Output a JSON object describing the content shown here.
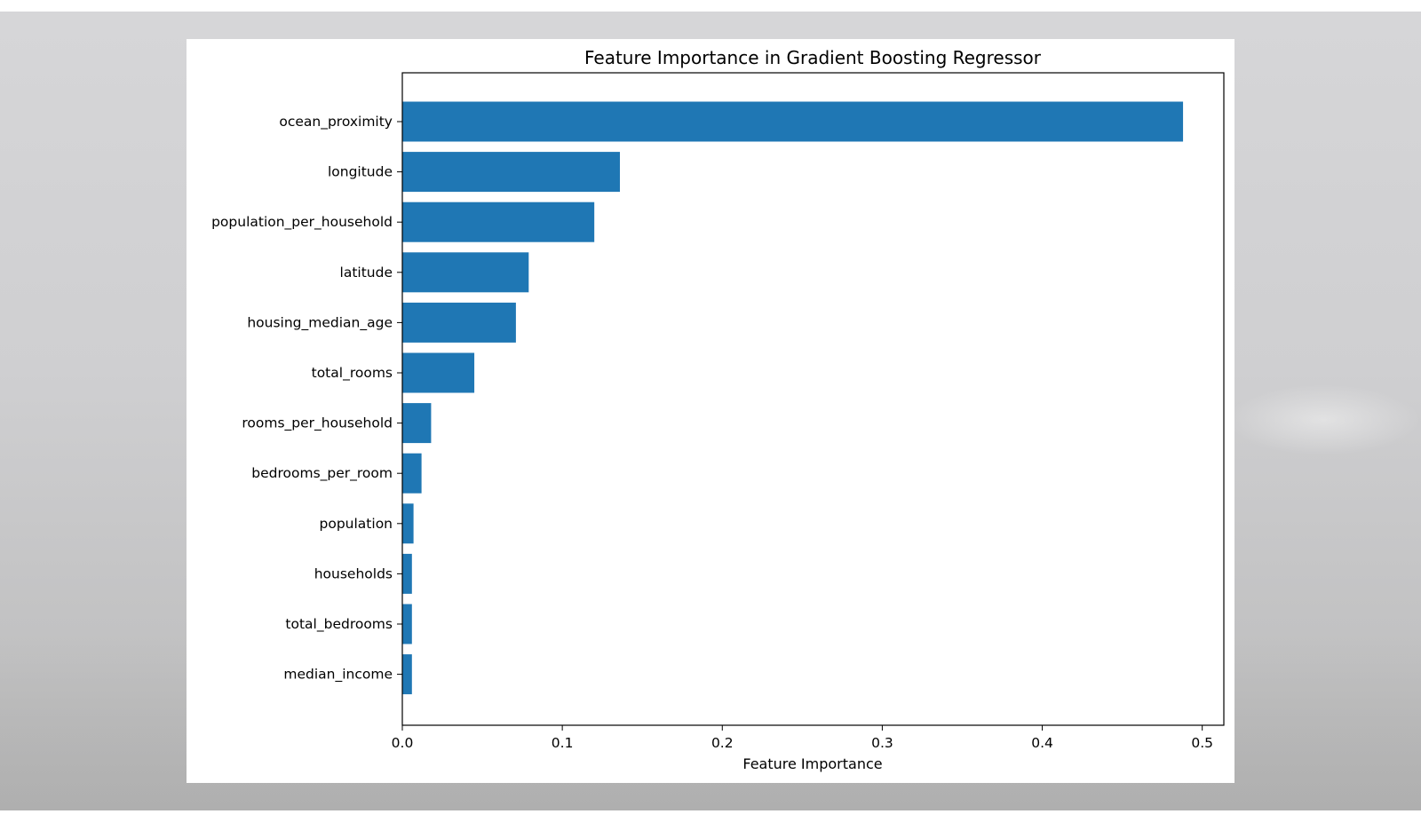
{
  "chart_data": {
    "type": "bar",
    "orientation": "horizontal",
    "title": "Feature Importance in Gradient Boosting Regressor",
    "xlabel": "Feature Importance",
    "ylabel": "",
    "xlim": [
      0,
      0.5135
    ],
    "xticks": [
      "0.0",
      "0.1",
      "0.2",
      "0.3",
      "0.4",
      "0.5"
    ],
    "grid": false,
    "bar_color": "#1f77b4",
    "categories": [
      "ocean_proximity",
      "longitude",
      "population_per_household",
      "latitude",
      "housing_median_age",
      "total_rooms",
      "rooms_per_household",
      "bedrooms_per_room",
      "population",
      "households",
      "total_bedrooms",
      "median_income"
    ],
    "values": [
      0.488,
      0.136,
      0.12,
      0.079,
      0.071,
      0.045,
      0.018,
      0.012,
      0.007,
      0.006,
      0.006,
      0.006
    ]
  }
}
